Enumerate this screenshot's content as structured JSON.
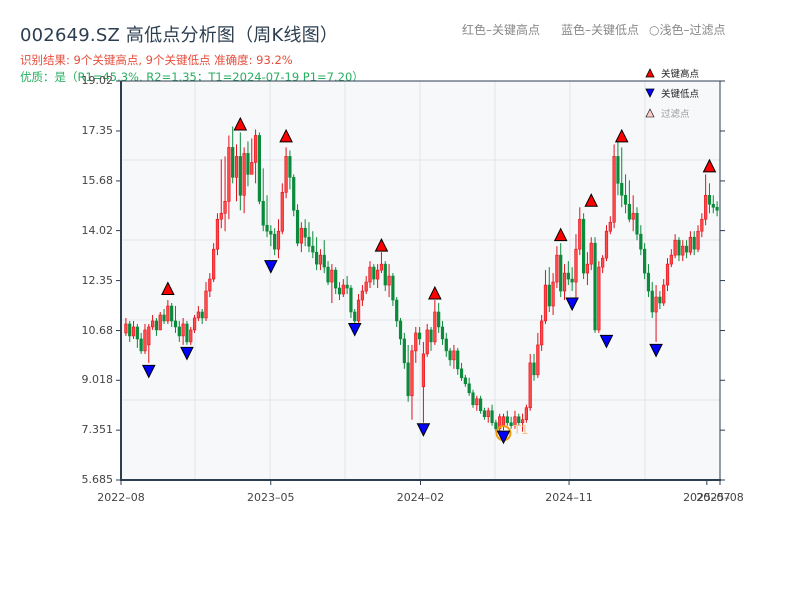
{
  "header": {
    "title": "002649.SZ 高低点分析图（周K线图）",
    "result_line": "识别结果: 9个关键高点, 9个关键低点  准确度: 93.2%",
    "quality_line": "优质：是（R1=45.3%, R2=1.35；T1=2024-07-19 P1=7.20）",
    "legend_top": {
      "red": "红色–关键高点",
      "blue": "蓝色–关键低点",
      "faded": "○浅色–过滤点"
    }
  },
  "legend": [
    {
      "label": "关键高点",
      "icon": "red-up-triangle-icon",
      "color": "#ff0000"
    },
    {
      "label": "关键低点",
      "icon": "blue-down-triangle-icon",
      "color": "#0000ff"
    },
    {
      "label": "过滤点",
      "icon": "faded-up-triangle-icon",
      "color": "#ffcccc"
    }
  ],
  "colors": {
    "up": "#e0111b",
    "down": "#0a8a3a",
    "high_marker": "#ff0000",
    "low_marker": "#0000ff",
    "t1_circle": "#f39c12",
    "plot_bg": "#f7f8fa",
    "grid": "#e2e4e8",
    "axis": "#2c3e50"
  },
  "chart_data": {
    "type": "candlestick",
    "title": "002649.SZ 高低点分析图（周K线图）",
    "xlabel": "",
    "ylabel": "",
    "ylim": [
      5.685,
      19.02
    ],
    "yticks": [
      "19.02",
      "17.35",
      "15.68",
      "14.02",
      "12.35",
      "10.68",
      "9.018",
      "7.351",
      "5.685"
    ],
    "ytick_values": [
      19.02,
      17.35,
      15.68,
      14.02,
      12.35,
      10.68,
      9.018,
      7.351,
      5.685
    ],
    "xticks": [
      {
        "label": "2022–08",
        "pos": 0.0
      },
      {
        "label": "2023–05",
        "pos": 0.25
      },
      {
        "label": "2024–02",
        "pos": 0.5
      },
      {
        "label": "2024–11",
        "pos": 0.748
      },
      {
        "label": "2025–07",
        "pos": 0.978
      },
      {
        "label": "2025–08",
        "pos": 1.0
      }
    ],
    "grid": true,
    "legend_position": "top-right",
    "key_highs": [
      {
        "idx": 11,
        "price": 11.85
      },
      {
        "idx": 30,
        "price": 17.35
      },
      {
        "idx": 42,
        "price": 16.95
      },
      {
        "idx": 67,
        "price": 13.3
      },
      {
        "idx": 81,
        "price": 11.7
      },
      {
        "idx": 114,
        "price": 13.65
      },
      {
        "idx": 122,
        "price": 14.8
      },
      {
        "idx": 130,
        "price": 16.95
      },
      {
        "idx": 153,
        "price": 15.95
      }
    ],
    "key_lows": [
      {
        "idx": 6,
        "price": 9.55
      },
      {
        "idx": 16,
        "price": 10.15
      },
      {
        "idx": 38,
        "price": 13.05
      },
      {
        "idx": 60,
        "price": 10.95
      },
      {
        "idx": 78,
        "price": 7.6
      },
      {
        "idx": 99,
        "price": 7.35
      },
      {
        "idx": 117,
        "price": 11.8
      },
      {
        "idx": 126,
        "price": 10.55
      },
      {
        "idx": 139,
        "price": 10.25
      }
    ],
    "t1": {
      "idx": 99,
      "label": "T1",
      "date": "2024-07-19",
      "price": 7.2
    },
    "candles": [
      [
        10.6,
        11.1,
        10.5,
        10.9
      ],
      [
        10.9,
        11.0,
        10.3,
        10.5
      ],
      [
        10.5,
        11.0,
        10.4,
        10.8
      ],
      [
        10.8,
        10.9,
        10.1,
        10.4
      ],
      [
        10.4,
        10.6,
        9.9,
        10.0
      ],
      [
        10.0,
        10.9,
        9.9,
        10.7
      ],
      [
        10.2,
        10.9,
        9.6,
        10.8
      ],
      [
        10.8,
        11.2,
        10.7,
        11.0
      ],
      [
        11.0,
        11.1,
        10.5,
        10.7
      ],
      [
        10.7,
        11.3,
        10.7,
        11.2
      ],
      [
        11.2,
        11.4,
        10.9,
        11.0
      ],
      [
        11.0,
        11.7,
        10.9,
        11.5
      ],
      [
        11.5,
        11.6,
        10.8,
        11.0
      ],
      [
        11.0,
        11.5,
        10.6,
        10.8
      ],
      [
        10.8,
        11.0,
        10.3,
        10.5
      ],
      [
        10.5,
        11.1,
        10.2,
        10.9
      ],
      [
        10.9,
        11.0,
        10.2,
        10.3
      ],
      [
        10.3,
        10.8,
        10.2,
        10.7
      ],
      [
        10.7,
        11.2,
        10.6,
        11.1
      ],
      [
        11.1,
        11.5,
        11.0,
        11.3
      ],
      [
        11.3,
        11.4,
        10.9,
        11.1
      ],
      [
        11.1,
        12.3,
        11.0,
        12.0
      ],
      [
        12.0,
        12.6,
        11.8,
        12.4
      ],
      [
        12.4,
        13.6,
        12.3,
        13.4
      ],
      [
        13.4,
        14.6,
        13.2,
        14.4
      ],
      [
        14.4,
        16.4,
        14.1,
        14.6
      ],
      [
        14.6,
        16.5,
        14.0,
        15.0
      ],
      [
        15.0,
        17.2,
        14.4,
        16.8
      ],
      [
        16.8,
        17.5,
        15.6,
        15.8
      ],
      [
        15.8,
        16.9,
        15.0,
        16.5
      ],
      [
        16.5,
        17.3,
        14.7,
        15.2
      ],
      [
        15.2,
        16.8,
        14.6,
        16.6
      ],
      [
        16.6,
        17.0,
        15.5,
        15.9
      ],
      [
        15.9,
        17.1,
        16.0,
        16.3
      ],
      [
        16.3,
        17.4,
        15.6,
        17.2
      ],
      [
        17.2,
        17.3,
        14.9,
        15.0
      ],
      [
        15.0,
        16.1,
        14.0,
        14.2
      ],
      [
        14.2,
        15.2,
        13.8,
        14.0
      ],
      [
        14.0,
        14.2,
        13.5,
        13.9
      ],
      [
        13.9,
        14.1,
        13.2,
        13.4
      ],
      [
        13.4,
        14.4,
        13.1,
        14.0
      ],
      [
        14.0,
        15.6,
        13.9,
        15.3
      ],
      [
        15.3,
        16.8,
        15.1,
        16.5
      ],
      [
        16.5,
        16.7,
        15.4,
        15.8
      ],
      [
        15.8,
        15.9,
        14.5,
        14.7
      ],
      [
        14.7,
        14.9,
        13.5,
        13.6
      ],
      [
        13.6,
        14.3,
        13.3,
        14.1
      ],
      [
        14.1,
        14.4,
        13.5,
        13.8
      ],
      [
        13.8,
        14.3,
        13.3,
        13.5
      ],
      [
        13.5,
        14.0,
        13.1,
        13.3
      ],
      [
        13.3,
        13.8,
        12.7,
        12.9
      ],
      [
        12.9,
        13.4,
        12.7,
        13.2
      ],
      [
        13.2,
        13.7,
        12.6,
        12.8
      ],
      [
        12.8,
        13.0,
        12.2,
        12.3
      ],
      [
        12.3,
        12.9,
        11.6,
        12.7
      ],
      [
        12.7,
        12.8,
        11.9,
        12.1
      ],
      [
        12.1,
        12.3,
        11.7,
        11.9
      ],
      [
        11.9,
        12.4,
        11.8,
        12.2
      ],
      [
        12.2,
        12.5,
        11.9,
        12.1
      ],
      [
        12.1,
        12.2,
        11.1,
        11.3
      ],
      [
        11.3,
        11.4,
        10.9,
        11.0
      ],
      [
        11.0,
        11.9,
        10.9,
        11.7
      ],
      [
        11.7,
        12.2,
        11.5,
        12.0
      ],
      [
        12.0,
        12.5,
        11.9,
        12.3
      ],
      [
        12.3,
        13.0,
        12.1,
        12.8
      ],
      [
        12.8,
        12.9,
        12.2,
        12.4
      ],
      [
        12.4,
        12.9,
        12.1,
        12.7
      ],
      [
        12.7,
        13.3,
        12.6,
        12.9
      ],
      [
        12.9,
        13.0,
        12.0,
        12.2
      ],
      [
        12.2,
        12.9,
        11.8,
        12.5
      ],
      [
        12.5,
        12.6,
        11.5,
        11.7
      ],
      [
        11.7,
        11.8,
        10.8,
        11.0
      ],
      [
        11.0,
        11.1,
        10.2,
        10.4
      ],
      [
        10.4,
        10.6,
        9.4,
        9.6
      ],
      [
        9.6,
        10.2,
        8.3,
        8.5
      ],
      [
        8.5,
        10.2,
        7.7,
        10.0
      ],
      [
        10.0,
        10.8,
        9.6,
        10.6
      ],
      [
        10.6,
        10.8,
        10.2,
        10.4
      ],
      [
        8.8,
        10.3,
        7.6,
        9.9
      ],
      [
        9.9,
        10.9,
        9.8,
        10.7
      ],
      [
        10.7,
        10.8,
        10.0,
        10.3
      ],
      [
        10.3,
        11.7,
        10.2,
        11.3
      ],
      [
        11.3,
        11.6,
        10.6,
        10.8
      ],
      [
        10.8,
        11.0,
        10.2,
        10.4
      ],
      [
        10.4,
        10.6,
        9.8,
        10.0
      ],
      [
        10.0,
        10.1,
        9.5,
        9.7
      ],
      [
        9.7,
        10.2,
        9.4,
        10.0
      ],
      [
        10.0,
        10.1,
        9.2,
        9.4
      ],
      [
        9.4,
        9.6,
        9.0,
        9.1
      ],
      [
        9.1,
        9.2,
        8.8,
        8.9
      ],
      [
        8.9,
        9.1,
        8.5,
        8.6
      ],
      [
        8.6,
        8.7,
        8.1,
        8.2
      ],
      [
        8.2,
        8.5,
        8.0,
        8.4
      ],
      [
        8.4,
        8.5,
        7.9,
        8.0
      ],
      [
        8.0,
        8.1,
        7.7,
        7.8
      ],
      [
        7.8,
        8.1,
        7.6,
        8.0
      ],
      [
        8.0,
        8.2,
        7.5,
        7.6
      ],
      [
        7.6,
        7.7,
        7.3,
        7.4
      ],
      [
        7.4,
        7.9,
        7.3,
        7.8
      ],
      [
        7.5,
        7.9,
        7.35,
        7.8
      ],
      [
        7.8,
        8.0,
        7.5,
        7.6
      ],
      [
        7.6,
        7.8,
        7.4,
        7.5
      ],
      [
        7.5,
        8.0,
        7.4,
        7.8
      ],
      [
        7.8,
        7.9,
        7.5,
        7.6
      ],
      [
        7.6,
        7.9,
        7.3,
        7.7
      ],
      [
        7.7,
        8.2,
        7.6,
        8.1
      ],
      [
        8.1,
        9.9,
        8.0,
        9.6
      ],
      [
        9.6,
        9.9,
        9.0,
        9.2
      ],
      [
        9.2,
        10.6,
        9.1,
        10.2
      ],
      [
        10.2,
        11.2,
        10.0,
        11.0
      ],
      [
        11.0,
        12.7,
        10.9,
        12.2
      ],
      [
        12.2,
        12.8,
        11.3,
        11.5
      ],
      [
        11.5,
        12.6,
        11.2,
        12.3
      ],
      [
        12.3,
        13.5,
        12.1,
        13.2
      ],
      [
        13.2,
        13.6,
        11.8,
        12.0
      ],
      [
        12.0,
        12.9,
        11.7,
        12.6
      ],
      [
        12.6,
        13.0,
        12.2,
        12.4
      ],
      [
        12.4,
        12.8,
        12.0,
        12.3
      ],
      [
        12.3,
        13.9,
        11.7,
        13.4
      ],
      [
        13.4,
        14.8,
        13.2,
        14.4
      ],
      [
        14.4,
        14.6,
        12.4,
        12.6
      ],
      [
        12.6,
        13.3,
        12.2,
        12.9
      ],
      [
        12.9,
        13.8,
        12.7,
        13.6
      ],
      [
        13.6,
        13.8,
        10.6,
        10.7
      ],
      [
        10.7,
        13.0,
        10.6,
        12.8
      ],
      [
        12.8,
        13.2,
        12.6,
        13.1
      ],
      [
        13.1,
        14.2,
        13.0,
        14.0
      ],
      [
        14.0,
        14.5,
        13.9,
        14.3
      ],
      [
        14.3,
        16.9,
        14.1,
        16.5
      ],
      [
        16.5,
        17.0,
        15.2,
        15.6
      ],
      [
        15.6,
        16.8,
        14.8,
        15.2
      ],
      [
        15.2,
        15.9,
        14.6,
        14.9
      ],
      [
        14.9,
        15.7,
        14.3,
        14.4
      ],
      [
        14.4,
        15.2,
        14.0,
        14.6
      ],
      [
        14.6,
        14.8,
        13.7,
        13.9
      ],
      [
        13.9,
        14.2,
        13.2,
        13.4
      ],
      [
        13.4,
        13.6,
        12.4,
        12.6
      ],
      [
        12.6,
        12.9,
        11.8,
        12.0
      ],
      [
        12.0,
        12.3,
        11.1,
        11.3
      ],
      [
        11.3,
        12.2,
        10.3,
        11.8
      ],
      [
        11.8,
        12.0,
        11.4,
        11.6
      ],
      [
        11.6,
        12.4,
        11.5,
        12.2
      ],
      [
        12.2,
        13.1,
        12.0,
        12.9
      ],
      [
        12.9,
        13.4,
        12.8,
        13.2
      ],
      [
        13.2,
        13.9,
        13.1,
        13.7
      ],
      [
        13.7,
        13.8,
        13.0,
        13.2
      ],
      [
        13.2,
        13.7,
        13.0,
        13.5
      ],
      [
        13.5,
        13.7,
        13.1,
        13.3
      ],
      [
        13.3,
        14.0,
        13.2,
        13.8
      ],
      [
        13.8,
        14.0,
        13.2,
        13.4
      ],
      [
        13.4,
        14.2,
        13.3,
        14.0
      ],
      [
        14.0,
        14.6,
        13.8,
        14.4
      ],
      [
        14.4,
        15.9,
        14.2,
        15.2
      ],
      [
        15.2,
        15.6,
        14.6,
        14.9
      ],
      [
        14.9,
        15.2,
        14.6,
        14.8
      ],
      [
        14.8,
        15.0,
        14.5,
        14.7
      ]
    ]
  }
}
